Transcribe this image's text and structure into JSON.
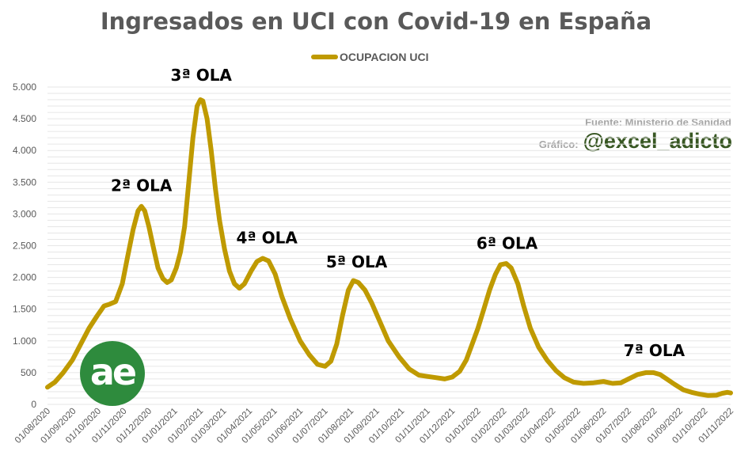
{
  "chart_data": {
    "type": "line",
    "title": "Ingresados en UCI con Covid-19 en España",
    "source": "Fuente: Ministerio de Sanidad",
    "credit_label": "Gráfico:",
    "credit_handle": "@excel_adicto",
    "logo_text": "ae",
    "legend": "top-center",
    "grid": true,
    "ylim": [
      0,
      5000
    ],
    "yticks": [
      {
        "value": 0,
        "label": "0"
      },
      {
        "value": 500,
        "label": "500"
      },
      {
        "value": 1000,
        "label": "1.000"
      },
      {
        "value": 1500,
        "label": "1.500"
      },
      {
        "value": 2000,
        "label": "2.000"
      },
      {
        "value": 2500,
        "label": "2.500"
      },
      {
        "value": 3000,
        "label": "3.000"
      },
      {
        "value": 3500,
        "label": "3.500"
      },
      {
        "value": 4000,
        "label": "4.000"
      },
      {
        "value": 4500,
        "label": "4.500"
      },
      {
        "value": 5000,
        "label": "5.000"
      }
    ],
    "xlim": [
      "2020-08-01",
      "2022-11-01"
    ],
    "xticks": [
      "01/08/2020",
      "01/09/2020",
      "01/10/2020",
      "01/11/2020",
      "01/12/2020",
      "01/01/2021",
      "01/02/2021",
      "01/03/2021",
      "01/04/2021",
      "01/05/2021",
      "01/06/2021",
      "01/07/2021",
      "01/08/2021",
      "01/09/2021",
      "01/10/2021",
      "01/11/2021",
      "01/12/2021",
      "01/01/2022",
      "01/02/2022",
      "01/03/2022",
      "01/04/2022",
      "01/05/2022",
      "01/06/2022",
      "01/07/2022",
      "01/08/2022",
      "01/09/2022",
      "01/10/2022",
      "01/11/2022"
    ],
    "series": [
      {
        "name": "OCUPACION UCI",
        "color": "#bf9a00",
        "points": [
          [
            "2020-08-01",
            270
          ],
          [
            "2020-08-10",
            350
          ],
          [
            "2020-08-20",
            500
          ],
          [
            "2020-08-31",
            700
          ],
          [
            "2020-09-10",
            950
          ],
          [
            "2020-09-20",
            1200
          ],
          [
            "2020-09-30",
            1400
          ],
          [
            "2020-10-08",
            1550
          ],
          [
            "2020-10-15",
            1580
          ],
          [
            "2020-10-22",
            1620
          ],
          [
            "2020-10-30",
            1900
          ],
          [
            "2020-11-05",
            2300
          ],
          [
            "2020-11-12",
            2750
          ],
          [
            "2020-11-18",
            3050
          ],
          [
            "2020-11-22",
            3120
          ],
          [
            "2020-11-26",
            3050
          ],
          [
            "2020-12-01",
            2800
          ],
          [
            "2020-12-06",
            2500
          ],
          [
            "2020-12-12",
            2150
          ],
          [
            "2020-12-18",
            1980
          ],
          [
            "2020-12-23",
            1920
          ],
          [
            "2020-12-28",
            1960
          ],
          [
            "2021-01-03",
            2150
          ],
          [
            "2021-01-08",
            2400
          ],
          [
            "2021-01-13",
            2800
          ],
          [
            "2021-01-18",
            3500
          ],
          [
            "2021-01-23",
            4200
          ],
          [
            "2021-01-28",
            4700
          ],
          [
            "2021-02-01",
            4800
          ],
          [
            "2021-02-04",
            4780
          ],
          [
            "2021-02-09",
            4500
          ],
          [
            "2021-02-14",
            4000
          ],
          [
            "2021-02-19",
            3400
          ],
          [
            "2021-02-24",
            2900
          ],
          [
            "2021-03-02",
            2450
          ],
          [
            "2021-03-08",
            2100
          ],
          [
            "2021-03-14",
            1900
          ],
          [
            "2021-03-20",
            1830
          ],
          [
            "2021-03-26",
            1900
          ],
          [
            "2021-04-03",
            2100
          ],
          [
            "2021-04-10",
            2250
          ],
          [
            "2021-04-17",
            2300
          ],
          [
            "2021-04-24",
            2260
          ],
          [
            "2021-05-02",
            2050
          ],
          [
            "2021-05-10",
            1700
          ],
          [
            "2021-05-20",
            1350
          ],
          [
            "2021-06-01",
            1000
          ],
          [
            "2021-06-12",
            780
          ],
          [
            "2021-06-22",
            630
          ],
          [
            "2021-07-01",
            600
          ],
          [
            "2021-07-08",
            680
          ],
          [
            "2021-07-15",
            950
          ],
          [
            "2021-07-22",
            1400
          ],
          [
            "2021-07-29",
            1800
          ],
          [
            "2021-08-04",
            1950
          ],
          [
            "2021-08-10",
            1920
          ],
          [
            "2021-08-18",
            1800
          ],
          [
            "2021-08-26",
            1600
          ],
          [
            "2021-09-05",
            1300
          ],
          [
            "2021-09-15",
            1000
          ],
          [
            "2021-09-28",
            750
          ],
          [
            "2021-10-10",
            560
          ],
          [
            "2021-10-22",
            460
          ],
          [
            "2021-11-01",
            440
          ],
          [
            "2021-11-12",
            420
          ],
          [
            "2021-11-22",
            400
          ],
          [
            "2021-12-01",
            430
          ],
          [
            "2021-12-10",
            520
          ],
          [
            "2021-12-18",
            700
          ],
          [
            "2021-12-25",
            950
          ],
          [
            "2022-01-01",
            1200
          ],
          [
            "2022-01-08",
            1500
          ],
          [
            "2022-01-15",
            1800
          ],
          [
            "2022-01-22",
            2050
          ],
          [
            "2022-01-28",
            2200
          ],
          [
            "2022-02-04",
            2220
          ],
          [
            "2022-02-10",
            2150
          ],
          [
            "2022-02-18",
            1900
          ],
          [
            "2022-02-25",
            1550
          ],
          [
            "2022-03-05",
            1200
          ],
          [
            "2022-03-15",
            900
          ],
          [
            "2022-03-25",
            700
          ],
          [
            "2022-04-05",
            530
          ],
          [
            "2022-04-15",
            420
          ],
          [
            "2022-04-26",
            350
          ],
          [
            "2022-05-08",
            330
          ],
          [
            "2022-05-20",
            340
          ],
          [
            "2022-06-01",
            360
          ],
          [
            "2022-06-12",
            330
          ],
          [
            "2022-06-22",
            340
          ],
          [
            "2022-07-01",
            400
          ],
          [
            "2022-07-12",
            470
          ],
          [
            "2022-07-22",
            500
          ],
          [
            "2022-07-31",
            500
          ],
          [
            "2022-08-08",
            470
          ],
          [
            "2022-08-16",
            400
          ],
          [
            "2022-08-25",
            320
          ],
          [
            "2022-09-05",
            230
          ],
          [
            "2022-09-15",
            190
          ],
          [
            "2022-09-25",
            160
          ],
          [
            "2022-10-05",
            140
          ],
          [
            "2022-10-15",
            145
          ],
          [
            "2022-10-22",
            175
          ],
          [
            "2022-10-28",
            190
          ],
          [
            "2022-11-01",
            180
          ]
        ]
      }
    ],
    "annotations": [
      {
        "text": "2ª OLA",
        "x": "2020-11-22",
        "y": 3360
      },
      {
        "text": "3ª OLA",
        "x": "2021-02-02",
        "y": 5100
      },
      {
        "text": "4ª OLA",
        "x": "2021-04-22",
        "y": 2540
      },
      {
        "text": "5ª OLA",
        "x": "2021-08-08",
        "y": 2160
      },
      {
        "text": "6ª OLA",
        "x": "2022-02-05",
        "y": 2450
      },
      {
        "text": "7ª OLA",
        "x": "2022-08-01",
        "y": 760
      }
    ]
  }
}
